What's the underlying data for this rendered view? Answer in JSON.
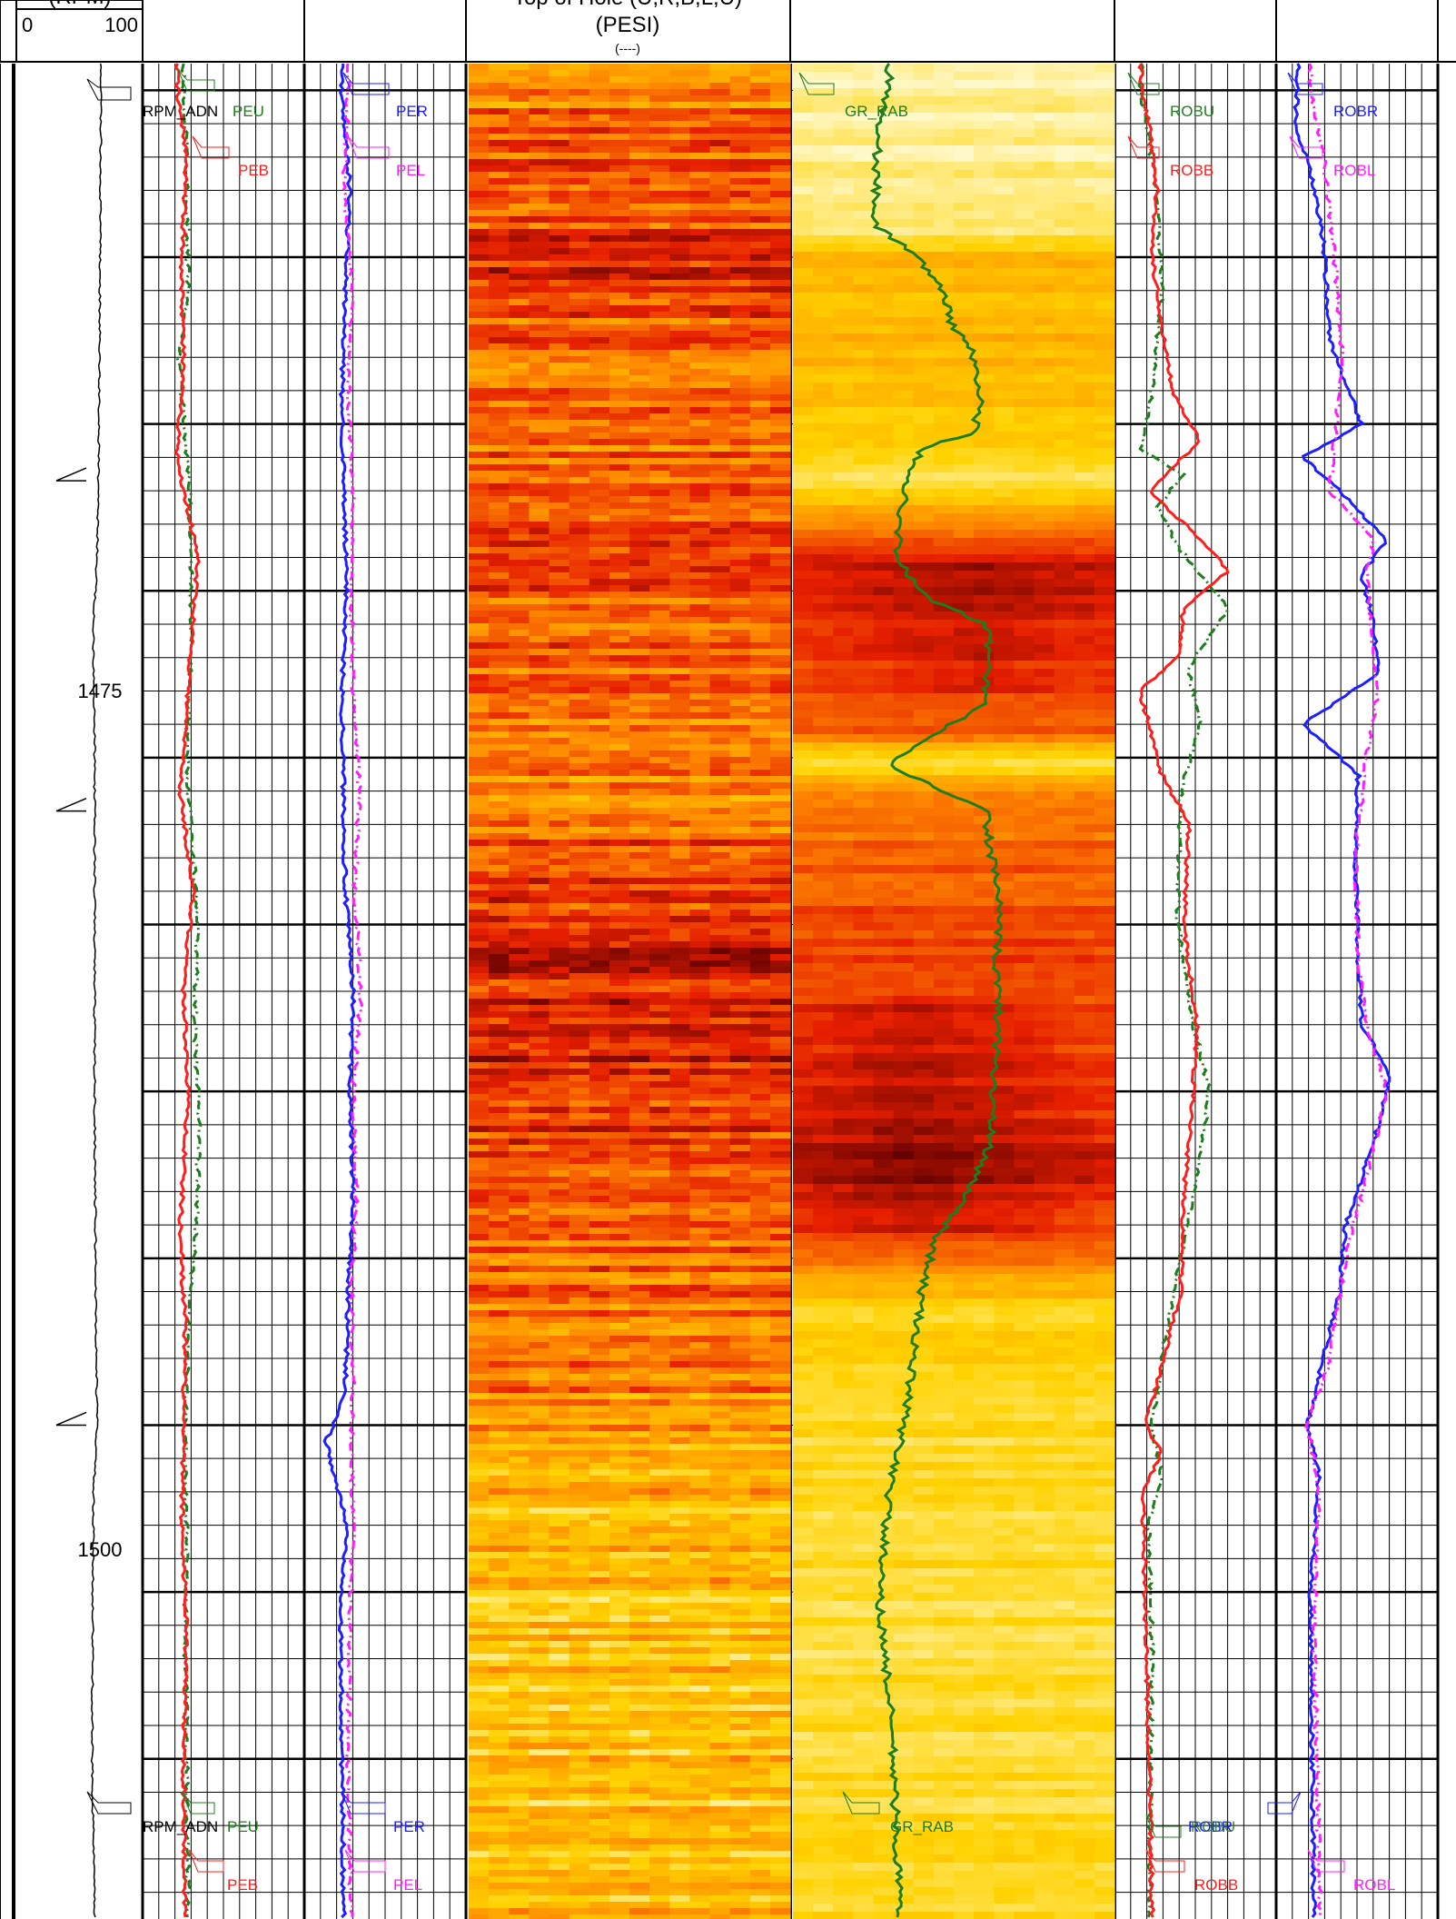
{
  "header": {
    "rpm_track_title": "(RPM)",
    "rpm_scale_min": "0",
    "rpm_scale_max": "100",
    "image_track_title_line1": "Top of Hole (U,R,B,L,U)",
    "image_track_title_line2": "(PESI)",
    "image_track_units": "(----)"
  },
  "colors": {
    "pe_up": "#1e7d1e",
    "pe_bottom": "#ff1e1e",
    "pe_right": "#1e1eff",
    "pe_left": "#ff1eff",
    "gr": "#1e7d1e",
    "heat_light": "#fff8c8",
    "heat_mid": "#ffd200",
    "heat_orange": "#ff8c00",
    "heat_red": "#e61e00",
    "heat_dark": "#5a0000"
  },
  "chart_data": {
    "type": "line",
    "depth_axis": {
      "label_values": [
        "1475",
        "1500"
      ],
      "ticks": [
        1475,
        1500
      ],
      "range": [
        1459.2,
        1514.8
      ],
      "direction": "down"
    },
    "tracks": [
      {
        "name": "rpm",
        "scale": [
          0,
          100
        ],
        "series": [
          {
            "name": "RPM_ADN",
            "color": "#000000",
            "depth": [
              1460,
              1467,
              1472,
              1474,
              1476,
              1480,
              1482,
              1490,
              1497,
              1500,
              1502,
              1510,
              1514.8
            ],
            "value": [
              67,
              66,
              65,
              64,
              61,
              62,
              62,
              62,
              63,
              64,
              61,
              60,
              62
            ]
          }
        ]
      },
      {
        "name": "pe-up-bottom",
        "series": [
          {
            "name": "PEU",
            "color": "#1e7d1e",
            "depth": [
              1460,
              1462,
              1466,
              1468,
              1472,
              1476,
              1480,
              1485,
              1488,
              1491,
              1494,
              1497,
              1500,
              1503,
              1506,
              1510,
              1514.8
            ],
            "value": [
              2.4,
              2.6,
              2.7,
              2.1,
              2.8,
              2.9,
              2.6,
              3.3,
              3.1,
              3.4,
              3.2,
              2.7,
              2.5,
              2.6,
              2.5,
              2.6,
              2.7
            ]
          },
          {
            "name": "PEB",
            "color": "#ff1e1e",
            "depth": [
              1460,
              1462,
              1465,
              1468,
              1471,
              1474,
              1478,
              1481,
              1484,
              1487,
              1490,
              1494,
              1497,
              1500,
              1503,
              1506,
              1510,
              1514.8
            ],
            "value": [
              2.0,
              2.6,
              2.3,
              2.4,
              2.0,
              3.3,
              2.7,
              2.2,
              3.0,
              2.4,
              2.7,
              2.2,
              2.5,
              2.4,
              2.3,
              2.6,
              2.4,
              2.5
            ]
          }
        ]
      },
      {
        "name": "pe-right-left",
        "series": [
          {
            "name": "PER",
            "color": "#1e1eff",
            "depth": [
              1460,
              1463,
              1466,
              1469,
              1472,
              1475,
              1478,
              1481,
              1484,
              1487,
              1490,
              1493,
              1496,
              1499,
              1500.5,
              1503,
              1506,
              1510,
              1514.8
            ],
            "value": [
              2.2,
              2.7,
              2.4,
              2.2,
              2.3,
              2.5,
              2.2,
              2.3,
              2.4,
              2.9,
              2.7,
              2.9,
              2.6,
              2.4,
              1.2,
              2.5,
              2.1,
              2.2,
              2.3
            ]
          },
          {
            "name": "PEL",
            "color": "#ff1eff",
            "depth": [
              1460,
              1463,
              1466,
              1469,
              1472,
              1475,
              1478,
              1481,
              1484,
              1487,
              1490,
              1493,
              1496,
              1499,
              1500.5,
              1503,
              1506,
              1510,
              1514.8
            ],
            "value": [
              2.6,
              2.3,
              2.9,
              2.6,
              2.9,
              2.8,
              2.9,
              3.3,
              3.0,
              3.4,
              2.9,
              3.1,
              2.8,
              2.9,
              2.8,
              2.9,
              2.7,
              2.6,
              2.8
            ]
          }
        ]
      },
      {
        "name": "pe-image",
        "type": "heatmap",
        "columns": 16,
        "intensity_profile": {
          "depth": [
            1460,
            1465,
            1468,
            1471,
            1474,
            1478,
            1481,
            1484,
            1487,
            1490,
            1493,
            1496,
            1499,
            1502,
            1506,
            1510,
            1514.8
          ],
          "value": [
            0.55,
            0.7,
            0.55,
            0.6,
            0.6,
            0.55,
            0.5,
            0.72,
            0.75,
            0.7,
            0.65,
            0.55,
            0.5,
            0.35,
            0.3,
            0.3,
            0.35
          ]
        }
      },
      {
        "name": "gr-image",
        "type": "heatmap",
        "columns": 16,
        "intensity_profile": {
          "depth": [
            1460,
            1464,
            1464.8,
            1468,
            1470,
            1471.5,
            1472.5,
            1474,
            1476,
            1479,
            1480,
            1481,
            1485,
            1489,
            1492,
            1494,
            1495.5,
            1496.5,
            1500,
            1501,
            1505,
            1514.8
          ],
          "value": [
            0.05,
            0.08,
            0.35,
            0.35,
            0.3,
            0.12,
            0.45,
            0.8,
            0.7,
            0.65,
            0.15,
            0.55,
            0.65,
            0.7,
            0.8,
            0.7,
            0.4,
            0.25,
            0.2,
            0.22,
            0.18,
            0.2
          ]
        }
      },
      {
        "name": "gr",
        "series": [
          {
            "name": "GR_RAB",
            "color": "#1e7d1e",
            "depth": [
              1460,
              1461,
              1464,
              1464.6,
              1465.3,
              1466,
              1467,
              1467.6,
              1469,
              1470.3,
              1470.7,
              1472,
              1473,
              1474,
              1475.2,
              1476,
              1477,
              1478.5,
              1479.4,
              1480.2,
              1481.6,
              1482.8,
              1484,
              1486,
              1488,
              1489.5,
              1491.5,
              1493,
              1494.5,
              1496,
              1497.5,
              1499,
              1500.5,
              1502,
              1505,
              1509,
              1512,
              1514.8
            ],
            "value": [
              45,
              40,
              38,
              50,
              62,
              70,
              74,
              82,
              88,
              84,
              60,
              52,
              50,
              48,
              62,
              90,
              92,
              88,
              62,
              44,
              90,
              92,
              96,
              95,
              96,
              94,
              92,
              82,
              66,
              60,
              57,
              54,
              50,
              45,
              40,
              46,
              48,
              50
            ]
          }
        ]
      },
      {
        "name": "ro-up-bottom",
        "series": [
          {
            "name": "ROBU",
            "color": "#1e7d1e",
            "depth": [
              1460,
              1461,
              1463,
              1466,
              1469,
              1470.8,
              1471.5,
              1472.5,
              1473.8,
              1475.5,
              1477.3,
              1479,
              1481,
              1485,
              1488,
              1490,
              1492,
              1495,
              1497.5,
              1500,
              1501.5,
              1503,
              1507,
              1514.8
            ],
            "value": [
              15,
              18,
              25,
              28,
              22,
              15,
              42,
              25,
              40,
              70,
              45,
              52,
              40,
              38,
              48,
              58,
              52,
              40,
              30,
              22,
              28,
              20,
              22,
              20
            ]
          },
          {
            "name": "ROBB",
            "color": "#ff1e1e",
            "depth": [
              1460,
              1461,
              1463,
              1465,
              1467,
              1469,
              1470.5,
              1472,
              1473.8,
              1474.4,
              1475.5,
              1477,
              1478,
              1479,
              1480.5,
              1482,
              1485,
              1488,
              1490,
              1493,
              1496,
              1500,
              1500.8,
              1502,
              1506,
              1510,
              1514.8
            ],
            "value": [
              15,
              20,
              25,
              22,
              28,
              35,
              52,
              20,
              60,
              70,
              42,
              38,
              14,
              20,
              28,
              45,
              42,
              50,
              48,
              42,
              40,
              18,
              28,
              16,
              18,
              20,
              22
            ]
          }
        ]
      },
      {
        "name": "ro-right-left",
        "series": [
          {
            "name": "ROBR",
            "color": "#1e1eff",
            "depth": [
              1460,
              1461,
              1462.5,
              1464.5,
              1467.5,
              1470,
              1471,
              1472,
              1473.5,
              1474.5,
              1476,
              1477.5,
              1479,
              1480.5,
              1483,
              1486,
              1488,
              1489.5,
              1491.5,
              1494,
              1496,
              1500,
              1501.5,
              1505,
              1514.8
            ],
            "value": [
              12,
              10,
              20,
              28,
              32,
              52,
              15,
              38,
              68,
              52,
              60,
              62,
              15,
              50,
              48,
              50,
              52,
              70,
              60,
              42,
              38,
              18,
              25,
              20,
              22
            ]
          },
          {
            "name": "ROBL",
            "color": "#ff1eff",
            "depth": [
              1460,
              1462,
              1465,
              1468,
              1470,
              1472,
              1473.5,
              1474.5,
              1476,
              1478,
              1480,
              1483,
              1486,
              1488,
              1490,
              1492,
              1495,
              1498,
              1500,
              1502,
              1506,
              1510,
              1514.8
            ],
            "value": [
              20,
              28,
              35,
              40,
              36,
              32,
              60,
              55,
              58,
              62,
              55,
              48,
              50,
              55,
              68,
              58,
              42,
              32,
              18,
              25,
              22,
              24,
              26
            ]
          }
        ]
      }
    ],
    "labels_top": {
      "rpm": "RPM_ADN",
      "peu": "PEU",
      "peb": "PEB",
      "per": "PER",
      "pel": "PEL",
      "gr": "GR_RAB",
      "robu": "ROBU",
      "robb": "ROBB",
      "robr": "ROBR",
      "robl": "ROBL"
    },
    "labels_bottom": {
      "rpm": "RPM_ADN",
      "peu": "PEU",
      "peb": "PEB",
      "per": "PER",
      "pel": "PEL",
      "gr": "GR_RAB",
      "robr": "ROBR",
      "robu": "ROBU",
      "robb": "ROBB",
      "robl": "ROBL"
    }
  }
}
